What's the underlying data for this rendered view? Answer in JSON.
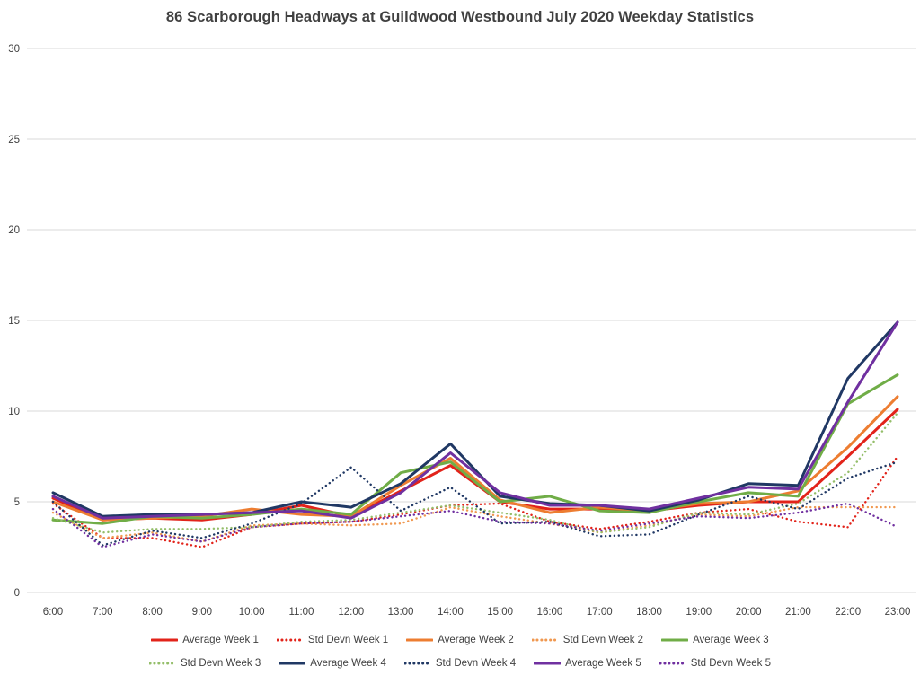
{
  "title": "86 Scarborough Headways at Guildwood Westbound July 2020 Weekday Statistics",
  "chart_data": {
    "type": "line",
    "title": "86 Scarborough Headways at Guildwood Westbound July 2020 Weekday Statistics",
    "xlabel": "",
    "ylabel": "",
    "ylim": [
      0,
      30
    ],
    "y_ticks": [
      0,
      5,
      10,
      15,
      20,
      25,
      30
    ],
    "grid": true,
    "legend_position": "bottom",
    "x": [
      "6:00",
      "7:00",
      "8:00",
      "9:00",
      "10:00",
      "11:00",
      "12:00",
      "13:00",
      "14:00",
      "15:00",
      "16:00",
      "17:00",
      "18:00",
      "19:00",
      "20:00",
      "21:00",
      "22:00",
      "23:00"
    ],
    "series": [
      {
        "name": "Average Week 1",
        "style": "solid",
        "color": "#e2231a",
        "values": [
          5.2,
          4.0,
          4.1,
          4.0,
          4.3,
          4.8,
          4.2,
          5.6,
          7.0,
          5.0,
          4.6,
          4.6,
          4.5,
          4.8,
          5.0,
          5.0,
          7.5,
          10.1
        ]
      },
      {
        "name": "Std Devn Week 1",
        "style": "dotted",
        "color": "#e2231a",
        "values": [
          4.9,
          3.0,
          3.0,
          2.5,
          3.6,
          3.8,
          3.9,
          4.3,
          4.8,
          4.9,
          3.9,
          3.5,
          3.9,
          4.4,
          4.6,
          3.9,
          3.6,
          7.5
        ]
      },
      {
        "name": "Average Week 2",
        "style": "solid",
        "color": "#ed7d31",
        "values": [
          5.0,
          4.0,
          4.1,
          4.2,
          4.6,
          4.3,
          4.2,
          5.9,
          7.4,
          5.1,
          4.4,
          4.7,
          4.5,
          4.9,
          5.0,
          5.6,
          8.0,
          10.8
        ]
      },
      {
        "name": "Std Devn Week 2",
        "style": "dotted",
        "color": "#f09850",
        "values": [
          4.4,
          3.0,
          3.3,
          2.8,
          3.7,
          3.8,
          3.7,
          3.8,
          4.7,
          4.2,
          3.8,
          3.3,
          3.7,
          4.3,
          4.2,
          4.7,
          4.7,
          4.7
        ]
      },
      {
        "name": "Average Week 3",
        "style": "solid",
        "color": "#70ad47",
        "values": [
          4.0,
          3.8,
          4.2,
          4.1,
          4.3,
          4.6,
          4.3,
          6.6,
          7.2,
          5.0,
          5.3,
          4.5,
          4.4,
          5.0,
          5.5,
          5.3,
          10.4,
          12.0
        ]
      },
      {
        "name": "Std Devn Week 3",
        "style": "dotted",
        "color": "#94be6a",
        "values": [
          4.1,
          3.3,
          3.5,
          3.5,
          3.6,
          3.9,
          4.0,
          4.4,
          4.8,
          4.4,
          4.0,
          3.3,
          3.6,
          4.4,
          4.3,
          4.9,
          6.6,
          9.9
        ]
      },
      {
        "name": "Average Week 4",
        "style": "solid",
        "color": "#203864",
        "values": [
          5.5,
          4.2,
          4.3,
          4.3,
          4.4,
          5.0,
          4.7,
          6.0,
          8.2,
          5.3,
          4.9,
          4.8,
          4.5,
          5.1,
          6.0,
          5.9,
          11.8,
          14.9
        ]
      },
      {
        "name": "Std Devn Week 4",
        "style": "dotted",
        "color": "#203864",
        "values": [
          5.0,
          2.6,
          3.4,
          3.0,
          3.8,
          4.9,
          6.9,
          4.5,
          5.8,
          3.8,
          3.9,
          3.1,
          3.2,
          4.3,
          5.3,
          4.6,
          6.3,
          7.2
        ]
      },
      {
        "name": "Average Week 5",
        "style": "solid",
        "color": "#7030a0",
        "values": [
          5.3,
          4.1,
          4.2,
          4.3,
          4.4,
          4.5,
          4.1,
          5.5,
          7.7,
          5.5,
          4.8,
          4.8,
          4.6,
          5.2,
          5.8,
          5.7,
          10.5,
          14.9
        ]
      },
      {
        "name": "Std Devn Week 5",
        "style": "dotted",
        "color": "#7030a0",
        "values": [
          4.6,
          2.5,
          3.2,
          2.8,
          3.6,
          3.8,
          3.9,
          4.2,
          4.5,
          3.9,
          3.8,
          3.4,
          3.8,
          4.2,
          4.1,
          4.4,
          4.9,
          3.6
        ]
      }
    ]
  }
}
